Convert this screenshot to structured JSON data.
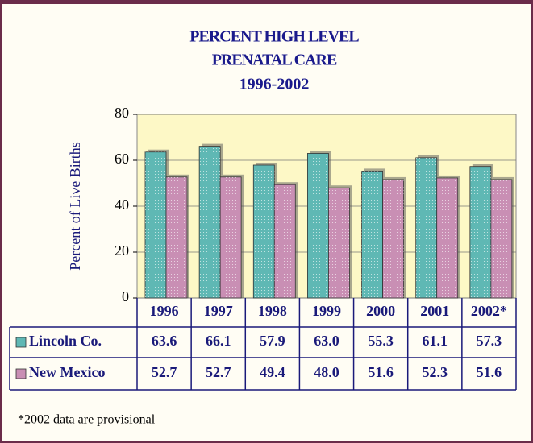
{
  "chart_data": {
    "type": "bar",
    "title": [
      "PERCENT HIGH LEVEL",
      "PRENATAL CARE",
      "1996-2002"
    ],
    "y_label": "Percent of Live Births",
    "categories": [
      "1996",
      "1997",
      "1998",
      "1999",
      "2000",
      "2001",
      "2002*"
    ],
    "series": [
      {
        "name": "Lincoln Co.",
        "color": "#5fb8b4",
        "values": [
          63.6,
          66.1,
          57.9,
          63.0,
          55.3,
          61.1,
          57.3
        ],
        "value_labels": [
          "63.6",
          "66.1",
          "57.9",
          "63.0",
          "55.3",
          "61.1",
          "57.3"
        ]
      },
      {
        "name": "New Mexico",
        "color": "#c98fb4",
        "values": [
          52.7,
          52.7,
          49.4,
          48.0,
          51.6,
          52.3,
          51.6
        ],
        "value_labels": [
          "52.7",
          "52.7",
          "49.4",
          "48.0",
          "51.6",
          "52.3",
          "51.6"
        ]
      }
    ],
    "ylim": [
      0,
      80
    ],
    "yticks": [
      0,
      20,
      40,
      60,
      80
    ],
    "grid": true,
    "footnote": "*2002 data are provisional"
  }
}
